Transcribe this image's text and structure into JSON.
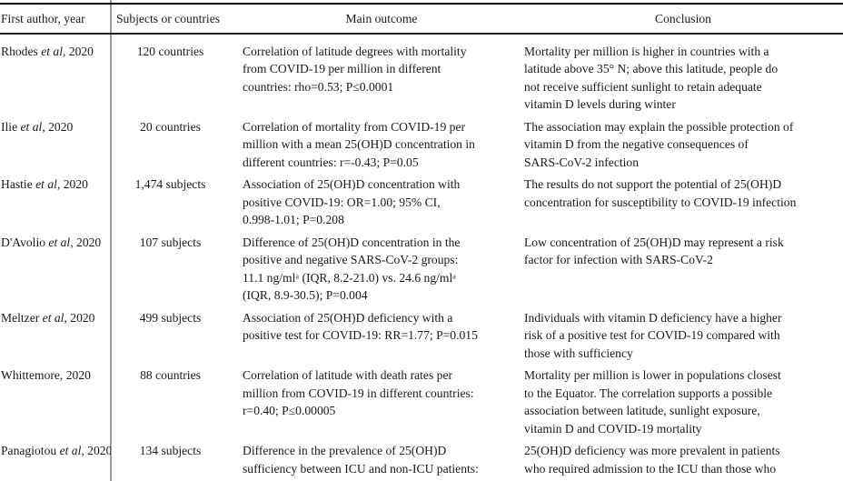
{
  "colors": {
    "background": "#ffffff",
    "text": "#1a1a1a",
    "top_rule": "#000000",
    "header_rule": "#222222",
    "column_divider": "#9b9b9b"
  },
  "table": {
    "columns": [
      "First author, year",
      "Subjects or countries",
      "Main outcome",
      "Conclusion"
    ],
    "rows": [
      {
        "author_pre": "Rhodes ",
        "author_italic": "et al",
        "author_post": ", 2020",
        "subjects": "120 countries",
        "outcome": "Correlation of latitude degrees with mortality\nfrom COVID-19 per million in different\ncountries: rho=0.53; P≤0.0001",
        "conclusion": "Mortality per million is higher in countries with a\nlatitude above 35° N; above this latitude, people do\nnot receive sufficient sunlight to retain adequate\nvitamin D levels during winter"
      },
      {
        "author_pre": "Ilie ",
        "author_italic": "et al",
        "author_post": ", 2020",
        "subjects": "20 countries",
        "outcome": "Correlation of mortality from COVID-19 per\nmillion with a mean 25(OH)D concentration in\ndifferent countries: r=-0.43; P=0.05",
        "conclusion": "The association may explain the possible protection of\nvitamin D from the negative consequences of\nSARS-CoV-2 infection"
      },
      {
        "author_pre": "Hastie ",
        "author_italic": "et al",
        "author_post": ", 2020",
        "subjects": "1,474 subjects",
        "outcome": "Association of 25(OH)D concentration with\npositive COVID-19: OR=1.00; 95% CI,\n0.998-1.01; P=0.208",
        "conclusion": "The results do not support the potential of 25(OH)D\nconcentration for susceptibility to COVID-19 infection"
      },
      {
        "author_pre": "D'Avolio ",
        "author_italic": "et al",
        "author_post": ", 2020",
        "subjects": "107 subjects",
        "outcome": "Difference of 25(OH)D concentration in the\npositive and negative SARS-CoV-2 groups:\n11.1 ng/mlᵃ (IQR, 8.2-21.0) vs. 24.6 ng/mlᵃ\n(IQR, 8.9-30.5); P=0.004",
        "conclusion": "Low concentration of 25(OH)D may represent a risk\nfactor for infection with SARS-CoV-2"
      },
      {
        "author_pre": "Meltzer ",
        "author_italic": "et al",
        "author_post": ", 2020",
        "subjects": "499 subjects",
        "outcome": "Association of 25(OH)D deficiency with a\npositive test for COVID-19: RR=1.77; P=0.015",
        "conclusion": "Individuals with vitamin D deficiency have a higher\nrisk of a positive test for COVID-19 compared with\nthose with sufficiency"
      },
      {
        "author_pre": "Whittemore, 2020",
        "author_italic": "",
        "author_post": "",
        "subjects": "88 countries",
        "outcome": "Correlation of latitude with death rates per\nmillion from COVID-19 in different countries:\nr=0.40; P≤0.00005",
        "conclusion": "Mortality per million is lower in populations closest\nto the Equator. The correlation supports a possible\nassociation between latitude, sunlight exposure,\nvitamin D and COVID-19 mortality"
      },
      {
        "author_pre": "Panagiotou ",
        "author_italic": "et al",
        "author_post": ", 2020",
        "subjects": "134 subjects",
        "outcome": "Difference in the prevalence of 25(OH)D\nsufficiency between ICU and non-ICU patients:",
        "conclusion": "25(OH)D deficiency was more prevalent in patients\nwho required admission to the ICU than those who"
      }
    ]
  }
}
